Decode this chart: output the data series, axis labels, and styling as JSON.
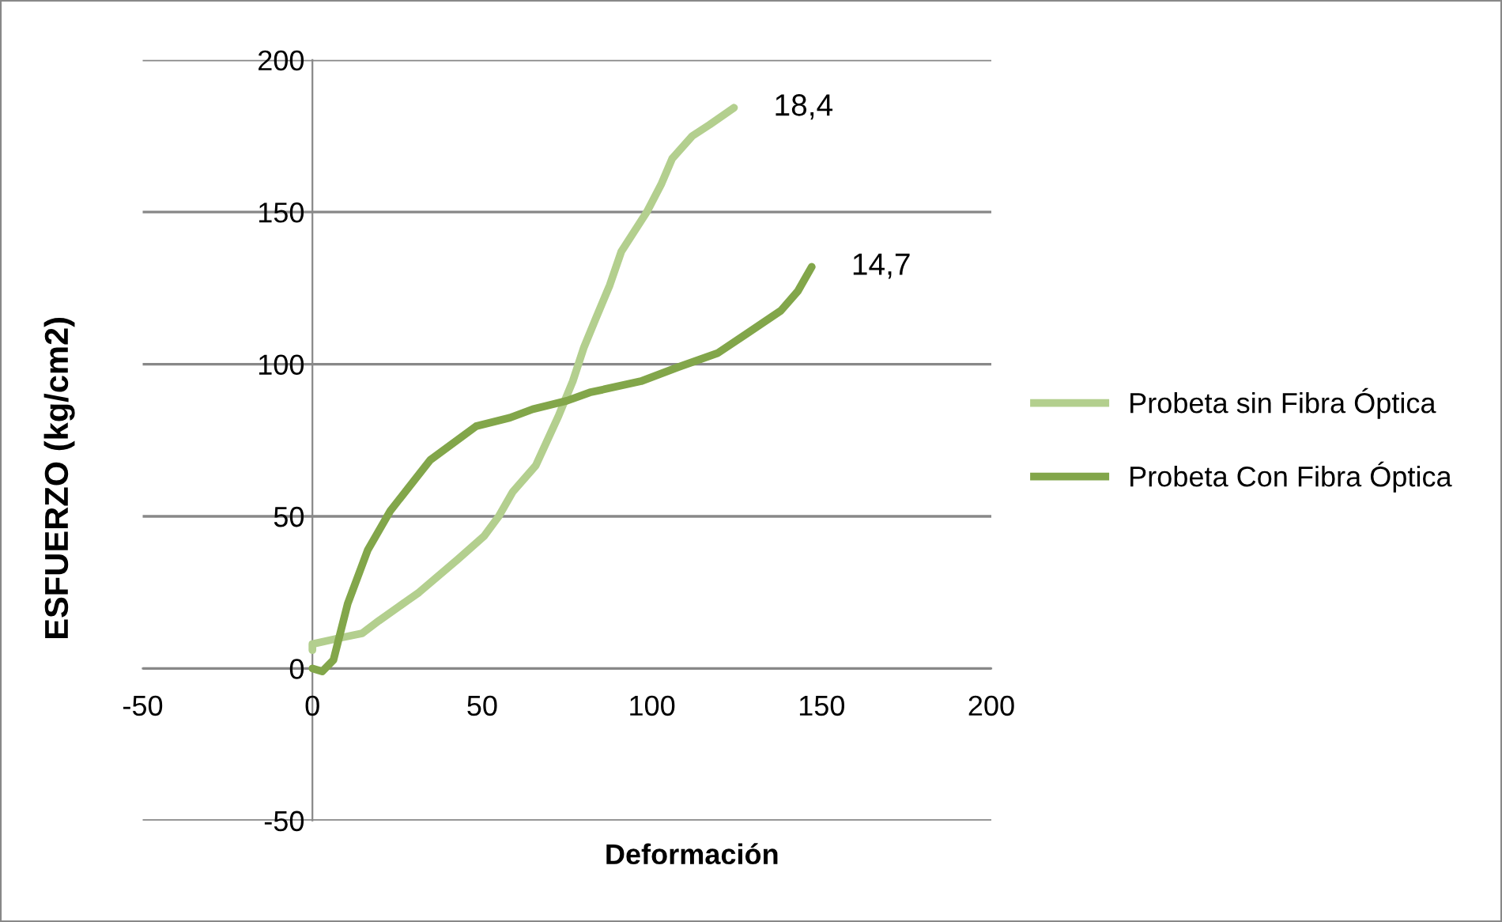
{
  "chart_data": {
    "type": "line",
    "xlabel": "Deformación",
    "ylabel": "ESFUERZO (kg/cm2)",
    "xlim": [
      -50,
      200
    ],
    "xticks": [
      -50,
      0,
      50,
      100,
      150,
      200
    ],
    "ylim": [
      -50,
      200
    ],
    "yticks": [
      -50,
      0,
      50,
      100,
      150,
      200
    ],
    "grid": "y",
    "legend": "right",
    "marker": "none",
    "line_style": "solid",
    "series": [
      {
        "name": "Probeta sin Fibra Óptica",
        "color": "#b3cf8e",
        "x": [
          0,
          0,
          8,
          14.6,
          19.6,
          31.4,
          43,
          50.6,
          54.9,
          59,
          65.8,
          72.5,
          76.7,
          80,
          83.4,
          87.6,
          91,
          98.5,
          102.7,
          106,
          111.9,
          117,
          124.2
        ],
        "values": [
          6,
          8,
          10,
          11.5,
          15.7,
          25,
          36,
          43.5,
          50,
          58,
          66.7,
          83,
          94.4,
          105.6,
          114.8,
          126,
          137,
          150,
          159,
          167.6,
          175,
          178.7,
          184.3
        ]
      },
      {
        "name": "Probeta Con Fibra Óptica",
        "color": "#82a64a",
        "x": [
          0,
          2.9,
          6.2,
          10.4,
          16.3,
          23,
          34.7,
          48.2,
          58.2,
          64.9,
          75,
          81.7,
          96.8,
          107.7,
          119.5,
          127.9,
          138,
          143,
          147.1
        ],
        "values": [
          0,
          -1,
          2.8,
          21.3,
          38.9,
          51.9,
          68.5,
          79.6,
          82.4,
          85.2,
          88,
          90.7,
          94.4,
          99,
          103.7,
          110,
          117.6,
          124,
          132
        ]
      }
    ],
    "annotations": [
      {
        "text": "18,4",
        "x": 124.2,
        "y": 184.3
      },
      {
        "text": "14,7",
        "x": 147.1,
        "y": 132
      }
    ]
  }
}
